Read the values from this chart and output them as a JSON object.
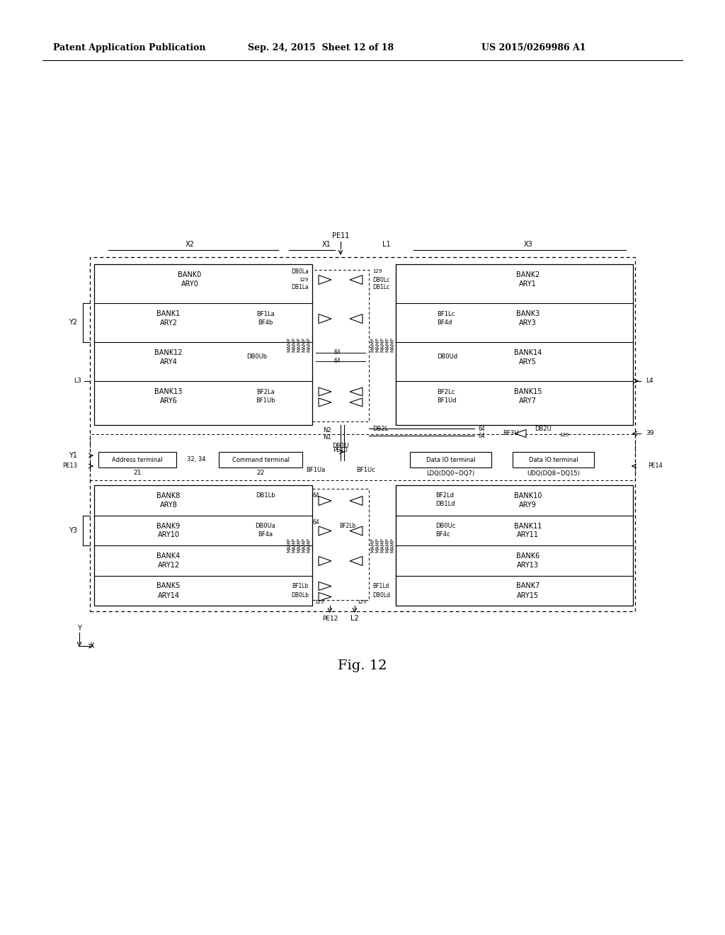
{
  "bg_color": "#ffffff",
  "header_text1": "Patent Application Publication",
  "header_text2": "Sep. 24, 2015  Sheet 12 of 18",
  "header_text3": "US 2015/0269986 A1",
  "fig_label": "Fig. 12"
}
